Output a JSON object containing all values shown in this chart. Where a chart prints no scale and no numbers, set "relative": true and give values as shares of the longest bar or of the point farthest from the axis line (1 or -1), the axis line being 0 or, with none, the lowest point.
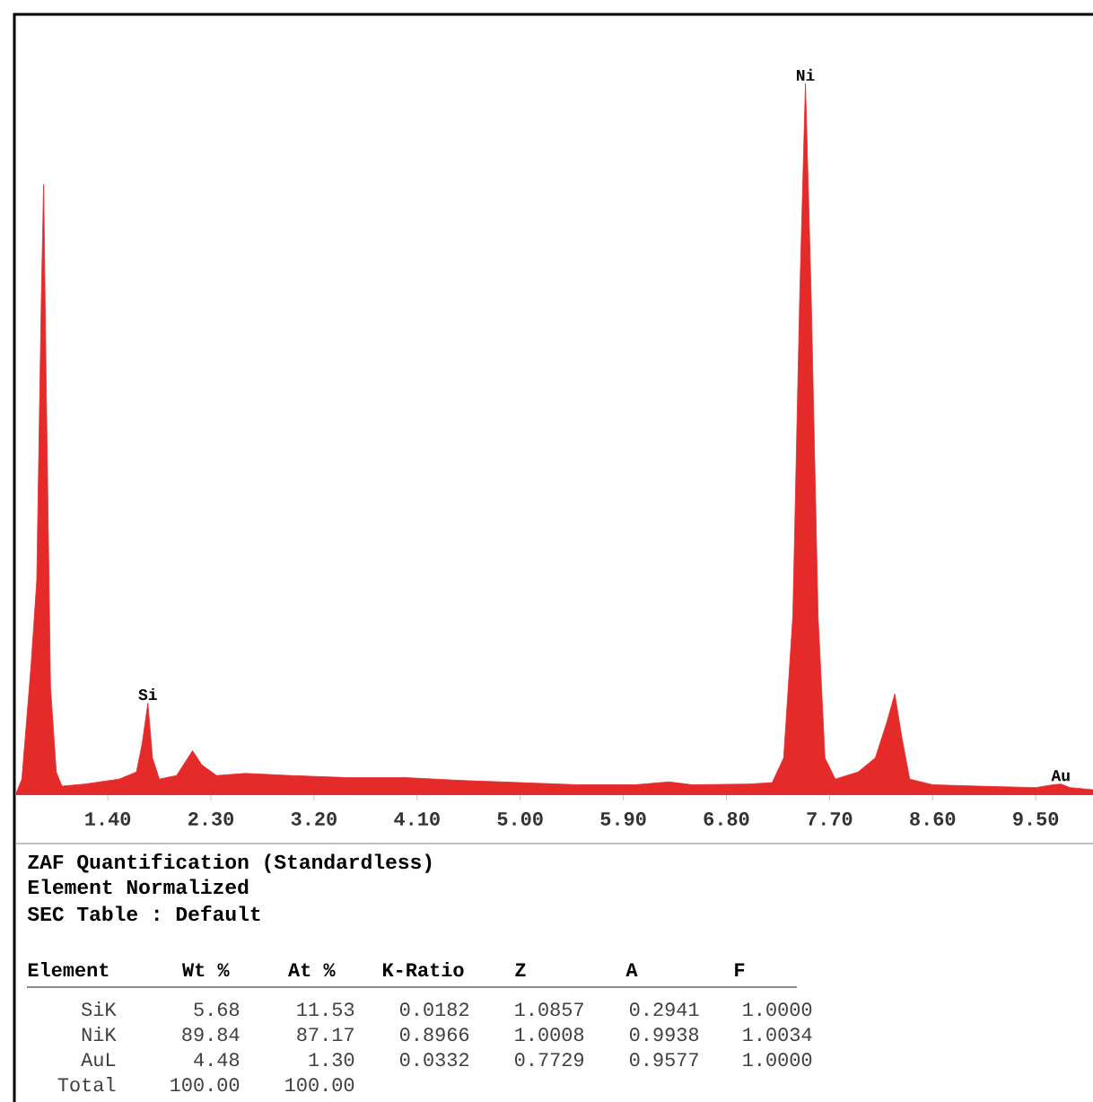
{
  "chart_data": {
    "type": "area",
    "relative": true,
    "color": "#e52a2a",
    "x": [
      0.6,
      0.65,
      0.73,
      0.78,
      0.82,
      0.84,
      0.86,
      0.9,
      0.95,
      1.0,
      1.2,
      1.5,
      1.65,
      1.7,
      1.75,
      1.79,
      1.85,
      2.0,
      2.08,
      2.14,
      2.22,
      2.35,
      2.6,
      3.0,
      3.5,
      4.0,
      4.5,
      5.0,
      5.5,
      6.0,
      6.3,
      6.5,
      7.0,
      7.2,
      7.3,
      7.38,
      7.44,
      7.49,
      7.54,
      7.6,
      7.66,
      7.75,
      7.95,
      8.1,
      8.2,
      8.27,
      8.33,
      8.4,
      8.6,
      9.0,
      9.5,
      9.65,
      9.72,
      9.8,
      10.0
    ],
    "values": [
      0.0,
      0.02,
      0.18,
      0.3,
      0.7,
      0.858,
      0.6,
      0.15,
      0.03,
      0.01,
      0.013,
      0.02,
      0.03,
      0.07,
      0.127,
      0.05,
      0.02,
      0.025,
      0.045,
      0.06,
      0.04,
      0.025,
      0.028,
      0.025,
      0.022,
      0.022,
      0.018,
      0.015,
      0.012,
      0.012,
      0.016,
      0.012,
      0.013,
      0.015,
      0.05,
      0.25,
      0.7,
      1.0,
      0.7,
      0.25,
      0.05,
      0.02,
      0.03,
      0.05,
      0.1,
      0.14,
      0.08,
      0.02,
      0.012,
      0.01,
      0.008,
      0.012,
      0.013,
      0.008,
      0.005
    ],
    "xlim": [
      0.6,
      10.0
    ],
    "xticks": [
      {
        "value": 1.4,
        "label": "1.40"
      },
      {
        "value": 2.3,
        "label": "2.30"
      },
      {
        "value": 3.2,
        "label": "3.20"
      },
      {
        "value": 4.1,
        "label": "4.10"
      },
      {
        "value": 5.0,
        "label": "5.00"
      },
      {
        "value": 5.9,
        "label": "5.90"
      },
      {
        "value": 6.8,
        "label": "6.80"
      },
      {
        "value": 7.7,
        "label": "7.70"
      },
      {
        "value": 8.6,
        "label": "8.60"
      },
      {
        "value": 9.5,
        "label": "9.50"
      }
    ],
    "annotations": [
      {
        "text": "Si",
        "x": 1.75,
        "y": 0.127
      },
      {
        "text": "Ni",
        "x": 7.49,
        "y": 1.0
      },
      {
        "text": "Au",
        "x": 9.72,
        "y": 0.013
      },
      "ZAF Quantification (Standardless)",
      "Element Normalized",
      "SEC Table : Default",
      "Element",
      "Wt %",
      "At %",
      "K-Ratio",
      "Z",
      "A",
      "F",
      "SiK",
      "5.68",
      "11.53",
      "0.0182",
      "1.0857",
      "0.2941",
      "1.0000",
      "NiK",
      "89.84",
      "87.17",
      "0.8966",
      "1.0008",
      "0.9938",
      "1.0034",
      "AuL",
      "4.48",
      "1.30",
      "0.0332",
      "0.7729",
      "0.9577",
      "1.0000",
      "Total",
      "100.00",
      "100.00"
    ]
  }
}
